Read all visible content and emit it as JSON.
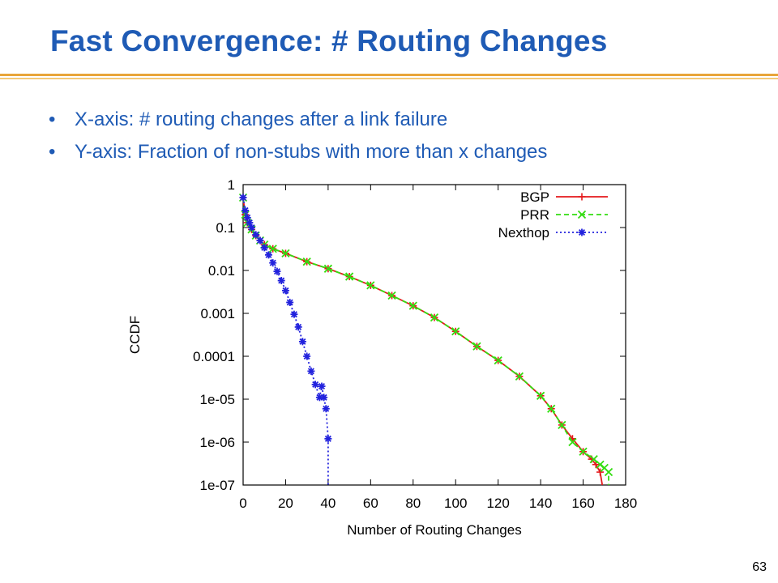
{
  "slide": {
    "title": "Fast Convergence: # Routing Changes",
    "bullets": [
      "X-axis: # routing changes after a link failure",
      "Y-axis: Fraction of non-stubs with more than x changes"
    ],
    "page_number": "63",
    "bullet_symbol": "•"
  },
  "colors": {
    "title": "#1f5bb5",
    "rule": "#e8a53a",
    "bgp": "#e41a1c",
    "prr": "#33dd11",
    "nexthop": "#2222dd"
  },
  "chart_data": {
    "type": "line",
    "x_scale": "linear",
    "y_scale": "log",
    "xlabel": "Number of Routing Changes",
    "ylabel": "CCDF",
    "xlim": [
      0,
      180
    ],
    "ylim": [
      1e-07,
      1
    ],
    "x_ticks": [
      "0",
      "20",
      "40",
      "60",
      "80",
      "100",
      "120",
      "140",
      "160",
      "180"
    ],
    "y_ticks": [
      "1",
      "0.1",
      "0.01",
      "0.001",
      "0.0001",
      "1e-05",
      "1e-06",
      "1e-07"
    ],
    "grid": false,
    "legend_position": "top-right",
    "series": [
      {
        "name": "BGP",
        "color": "#e41a1c",
        "style": "solid",
        "marker": "+",
        "x": [
          0,
          1,
          2,
          4,
          6,
          8,
          10,
          14,
          20,
          30,
          40,
          50,
          60,
          70,
          80,
          90,
          100,
          110,
          120,
          130,
          140,
          145,
          150,
          155,
          160,
          164,
          166,
          168,
          169,
          169
        ],
        "y": [
          0.5,
          0.2,
          0.13,
          0.09,
          0.065,
          0.05,
          0.04,
          0.032,
          0.025,
          0.016,
          0.011,
          0.0072,
          0.0045,
          0.0026,
          0.0015,
          0.0008,
          0.00038,
          0.00017,
          8e-05,
          3.4e-05,
          1.2e-05,
          6e-06,
          2.5e-06,
          1.2e-06,
          6e-07,
          4e-07,
          3e-07,
          2e-07,
          1e-07,
          1e-07
        ]
      },
      {
        "name": "PRR",
        "color": "#33dd11",
        "style": "dashed",
        "marker": "x",
        "x": [
          0,
          1,
          2,
          4,
          6,
          8,
          10,
          14,
          20,
          30,
          40,
          50,
          60,
          70,
          80,
          90,
          100,
          110,
          120,
          130,
          140,
          145,
          150,
          155,
          160,
          165,
          168,
          170,
          172,
          172
        ],
        "y": [
          0.5,
          0.2,
          0.13,
          0.09,
          0.065,
          0.05,
          0.04,
          0.032,
          0.025,
          0.016,
          0.011,
          0.0072,
          0.0045,
          0.0026,
          0.0015,
          0.0008,
          0.00038,
          0.00017,
          8e-05,
          3.4e-05,
          1.2e-05,
          6e-06,
          2.5e-06,
          1e-06,
          6e-07,
          4e-07,
          3e-07,
          2.5e-07,
          2e-07,
          1e-07
        ]
      },
      {
        "name": "Nexthop",
        "color": "#2222dd",
        "style": "dotted",
        "marker": "*",
        "x": [
          0,
          1,
          2,
          3,
          4,
          6,
          8,
          10,
          12,
          14,
          16,
          18,
          20,
          22,
          24,
          26,
          28,
          30,
          32,
          34,
          36,
          37,
          38,
          39,
          40,
          40
        ],
        "y": [
          0.5,
          0.25,
          0.17,
          0.13,
          0.1,
          0.068,
          0.05,
          0.034,
          0.023,
          0.015,
          0.0095,
          0.0058,
          0.0034,
          0.0018,
          0.00095,
          0.00048,
          0.00022,
          0.0001,
          4.5e-05,
          2.2e-05,
          1.1e-05,
          2e-05,
          1.1e-05,
          6e-06,
          1.2e-06,
          1e-07
        ]
      }
    ]
  }
}
